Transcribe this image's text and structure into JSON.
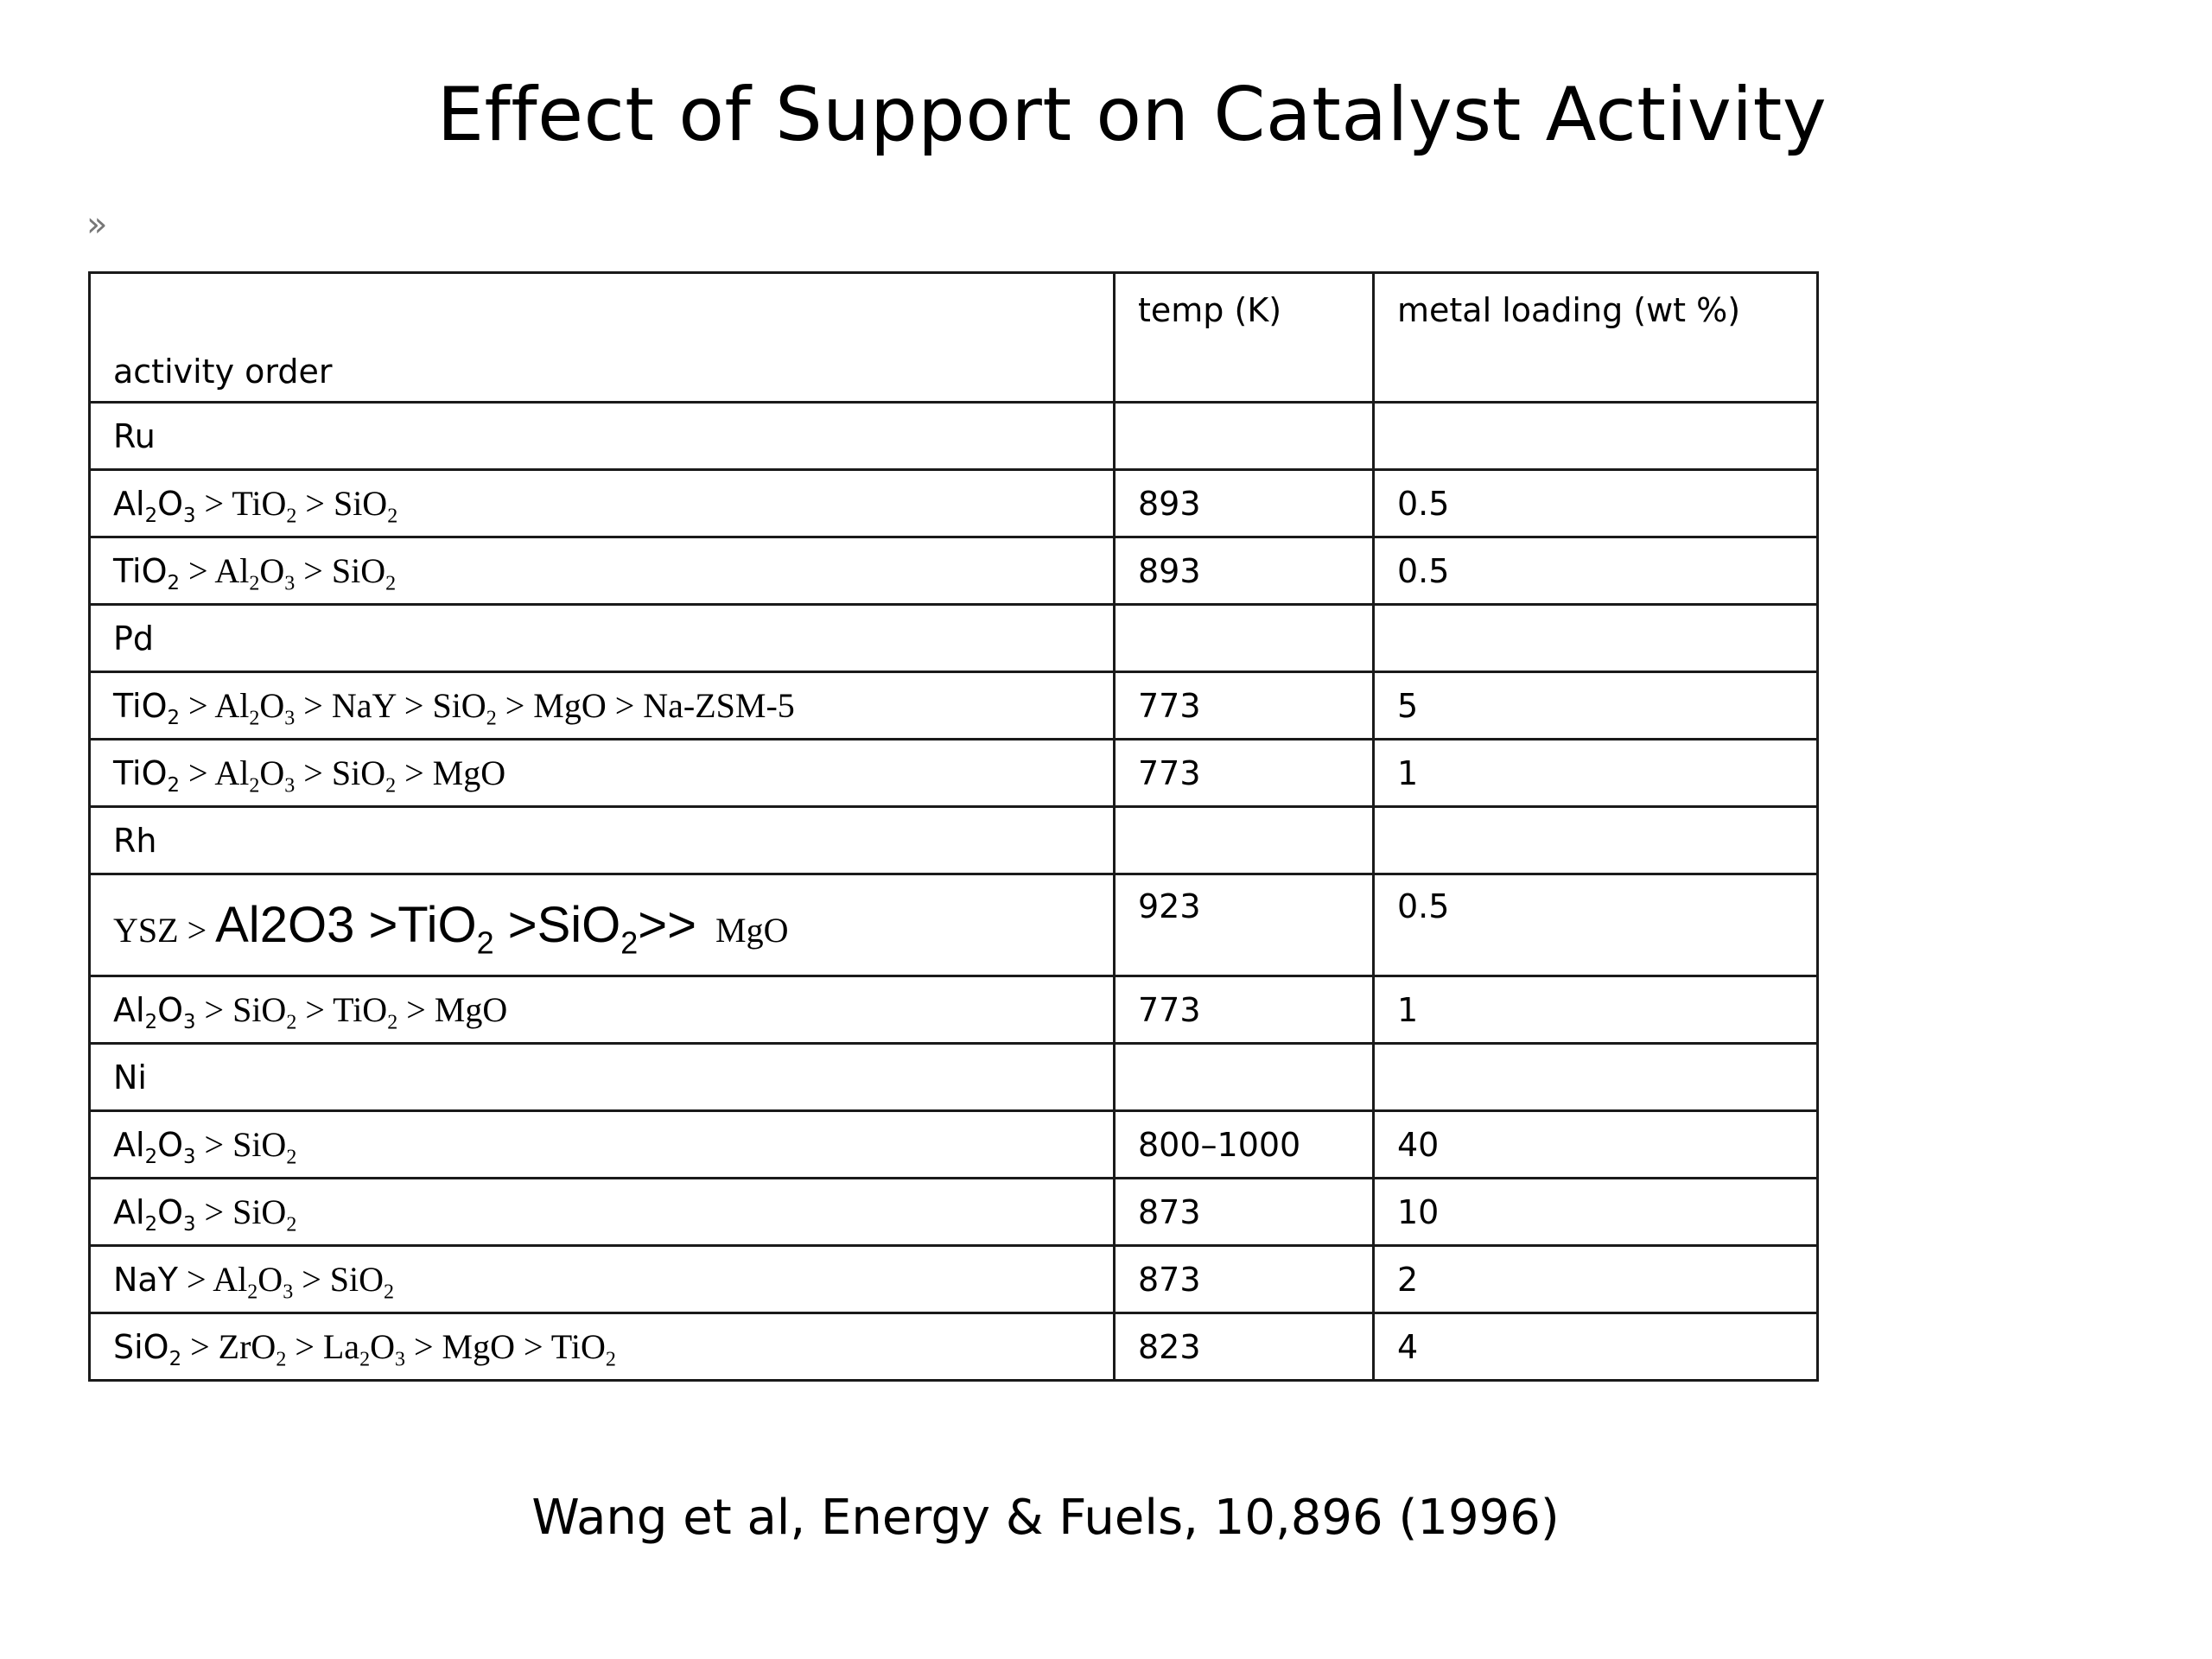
{
  "title": "Effect of Support on Catalyst Activity",
  "chevron": "»",
  "columns": {
    "activity": "activity order",
    "temp": "temp (K)",
    "loading": "metal loading (wt %)"
  },
  "rows": [
    {
      "type": "group",
      "metal": "Ru"
    },
    {
      "type": "data",
      "lead": "",
      "parts": [
        "Al",
        "2",
        "O",
        "3",
        " > TiO",
        "2",
        " > SiO",
        "2"
      ],
      "temp": "893",
      "loading": "0.5",
      "leadSans": [
        "Al",
        "2",
        "O",
        "3"
      ]
    },
    {
      "type": "data",
      "temp": "893",
      "loading": "0.5"
    },
    {
      "type": "group",
      "metal": "Pd"
    },
    {
      "type": "data",
      "temp": "773",
      "loading": "5"
    },
    {
      "type": "data",
      "temp": "773",
      "loading": "1"
    },
    {
      "type": "group",
      "metal": "Rh"
    },
    {
      "type": "data",
      "temp": "923",
      "loading": "0.5"
    },
    {
      "type": "data",
      "temp": "773",
      "loading": "1"
    },
    {
      "type": "group",
      "metal": "Ni"
    },
    {
      "type": "data",
      "temp": "800–1000",
      "loading": "40"
    },
    {
      "type": "data",
      "temp": "873",
      "loading": "10"
    },
    {
      "type": "data",
      "temp": "873",
      "loading": "2"
    },
    {
      "type": "data",
      "temp": "823",
      "loading": "4"
    }
  ],
  "formulas": {
    "r1": {
      "a": "Al",
      "a_sub": "2",
      "b": "O",
      "b_sub": "3",
      "c": " > TiO",
      "c_sub": "2",
      "d": " > SiO",
      "d_sub": "2"
    },
    "r2": {
      "a": "TiO",
      "a_sub": "2",
      "b": " > Al",
      "b_sub": "2",
      "c": "O",
      "c_sub": "3",
      "d": " > SiO",
      "d_sub": "2"
    },
    "r4": {
      "a": "TiO",
      "a_sub": "2",
      "b": " > Al",
      "b_sub": "2",
      "c": "O",
      "c_sub": "3",
      "d": " > NaY > SiO",
      "d_sub": "2",
      "e": " > MgO > Na-ZSM-5"
    },
    "r5": {
      "a": "TiO",
      "a_sub": "2",
      "b": " > Al",
      "b_sub": "2",
      "c": "O",
      "c_sub": "3",
      "d": " > SiO",
      "d_sub": "2",
      "e": " > MgO"
    },
    "r7": {
      "p1": "YSZ > ",
      "p2a": "Al2O3 >TiO",
      "p2a_sub": "2",
      "p2b": " >SiO",
      "p2b_sub": "2",
      "p2c": ">>",
      "p3": "MgO"
    },
    "r8": {
      "a": "Al",
      "a_sub": "2",
      "b": "O",
      "b_sub": "3",
      "c": " > SiO",
      "c_sub": "2",
      "d": " > TiO",
      "d_sub": "2",
      "e": " > MgO"
    },
    "r10": {
      "a": "Al",
      "a_sub": "2",
      "b": "O",
      "b_sub": "3",
      "c": " > SiO",
      "c_sub": "2"
    },
    "r11": {
      "a": "Al",
      "a_sub": "2",
      "b": "O",
      "b_sub": "3",
      "c": " > SiO",
      "c_sub": "2"
    },
    "r12": {
      "a": "NaY",
      "b": " > Al",
      "b_sub": "2",
      "c": "O",
      "c_sub": "3",
      "d": " > SiO",
      "d_sub": "2"
    },
    "r13": {
      "a": "SiO",
      "a_sub": "2",
      "b": " > ZrO",
      "b_sub": "2",
      "c": " > La",
      "c_sub": "2",
      "d": "O",
      "d_sub": "3",
      "e": " > MgO > TiO",
      "e_sub": "2"
    }
  },
  "citation": "Wang et al, Energy & Fuels, 10,896 (1996)"
}
